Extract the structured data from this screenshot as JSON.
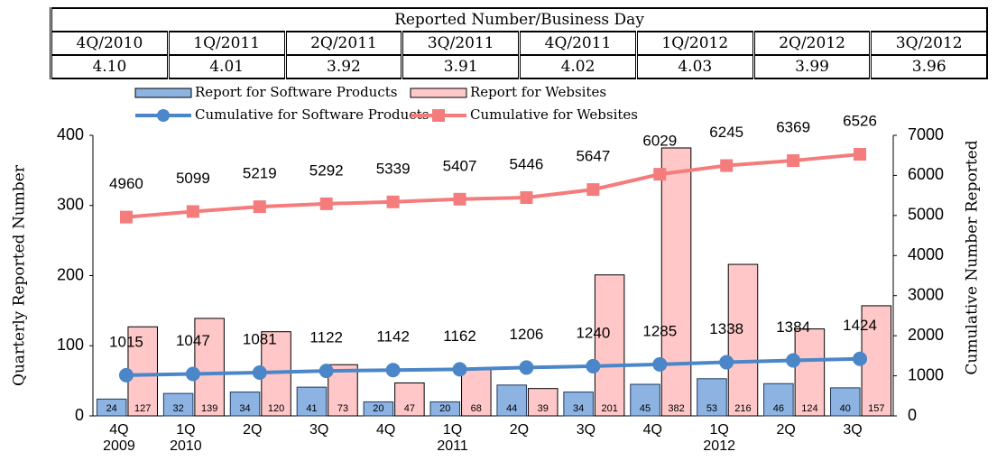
{
  "table": {
    "title": "Reported Number/Business Day",
    "headers": [
      "4Q/2010",
      "1Q/2011",
      "2Q/2011",
      "3Q/2011",
      "4Q/2011",
      "1Q/2012",
      "2Q/2012",
      "3Q/2012"
    ],
    "values": [
      "4.10",
      "4.01",
      "3.92",
      "3.91",
      "4.02",
      "4.03",
      "3.99",
      "3.96"
    ]
  },
  "chart_data": {
    "type": "bar",
    "categories": [
      "4Q\n2009",
      "1Q\n2010",
      "2Q",
      "3Q",
      "4Q",
      "1Q\n2011",
      "2Q",
      "3Q",
      "4Q",
      "1Q\n2012",
      "2Q",
      "3Q"
    ],
    "ylabel": "Quarterly Reported Number",
    "y2label": "Cumulative Number Reported",
    "ylim": [
      0,
      400
    ],
    "yticks": [
      0,
      100,
      200,
      300,
      400
    ],
    "y2lim": [
      0,
      7000
    ],
    "y2ticks": [
      0,
      1000,
      2000,
      3000,
      4000,
      5000,
      6000,
      7000
    ],
    "series": [
      {
        "name": "Report for Software Products",
        "type": "bar",
        "color": "#8db3e2",
        "values": [
          24,
          32,
          34,
          41,
          20,
          20,
          44,
          34,
          45,
          53,
          46,
          40
        ]
      },
      {
        "name": "Report for Websites",
        "type": "bar",
        "color": "#ffc7c7",
        "values": [
          127,
          139,
          120,
          73,
          47,
          68,
          39,
          201,
          382,
          216,
          124,
          157
        ]
      },
      {
        "name": "Cumulative for Software Products",
        "type": "line",
        "axis": "y2",
        "marker": "circle",
        "color": "#4a86c8",
        "values": [
          1015,
          1047,
          1081,
          1122,
          1142,
          1162,
          1206,
          1240,
          1285,
          1338,
          1384,
          1424
        ]
      },
      {
        "name": "Cumulative for Websites",
        "type": "line",
        "axis": "y2",
        "marker": "square",
        "color": "#f47c7c",
        "values": [
          4960,
          5099,
          5219,
          5292,
          5339,
          5407,
          5446,
          5647,
          6029,
          6245,
          6369,
          6526
        ]
      }
    ]
  }
}
